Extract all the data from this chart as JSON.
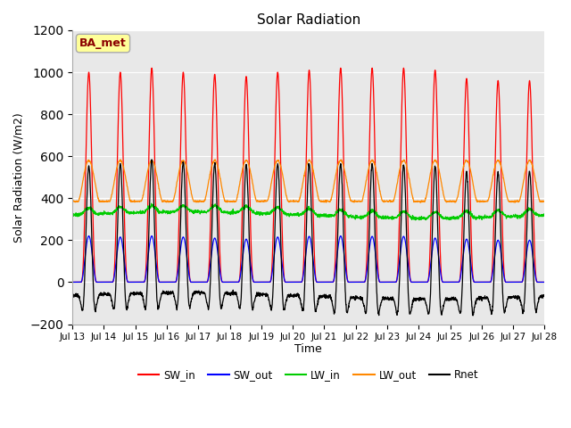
{
  "title": "Solar Radiation",
  "ylabel": "Solar Radiation (W/m2)",
  "xlabel": "Time",
  "ylim": [
    -200,
    1200
  ],
  "background_color": "#ffffff",
  "plot_bg_color": "#e8e8e8",
  "annotation_text": "BA_met",
  "annotation_bg": "#ffff99",
  "annotation_border": "#8b0000",
  "x_tick_labels": [
    "Jul 13",
    "Jul 14",
    "Jul 15",
    "Jul 16",
    "Jul 17",
    "Jul 18",
    "Jul 19",
    "Jul 20",
    "Jul 21",
    "Jul 22",
    "Jul 23",
    "Jul 24",
    "Jul 25",
    "Jul 26",
    "Jul 27",
    "Jul 28"
  ],
  "colors": {
    "SW_in": "#ff0000",
    "SW_out": "#0000ff",
    "LW_in": "#00cc00",
    "LW_out": "#ff8800",
    "Rnet": "#000000"
  },
  "legend_labels": [
    "SW_in",
    "SW_out",
    "LW_in",
    "LW_out",
    "Rnet"
  ],
  "sw_peaks": [
    1000,
    1000,
    1020,
    1000,
    990,
    980,
    1000,
    1010,
    1020,
    1020,
    1020,
    1010,
    970,
    960,
    960
  ],
  "sw_out_peaks": [
    220,
    215,
    220,
    215,
    210,
    205,
    215,
    218,
    220,
    218,
    218,
    210,
    205,
    200,
    200
  ],
  "lw_in_base": 320,
  "lw_out_base": 385,
  "lw_out_peak_add": 195,
  "rnet_night": -80,
  "n_days": 15,
  "hours_per_day": 24,
  "pts_per_hour": 6
}
